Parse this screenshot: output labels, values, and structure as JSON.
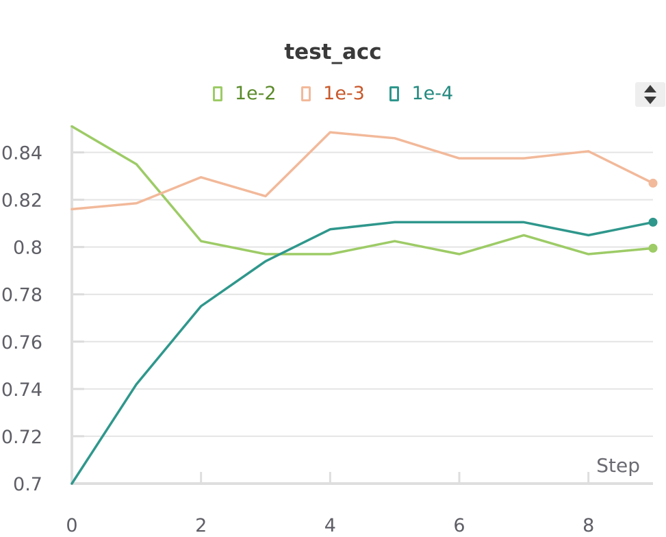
{
  "chart_data": {
    "type": "line",
    "title": "test_acc",
    "xlabel": "Step",
    "ylabel": "",
    "xlim": [
      0,
      9
    ],
    "ylim": [
      0.7,
      0.85
    ],
    "x_ticks": [
      0,
      2,
      4,
      6,
      8
    ],
    "y_ticks": [
      0.7,
      0.72,
      0.74,
      0.76,
      0.78,
      0.8,
      0.82,
      0.84
    ],
    "y_tick_labels": [
      "0.7",
      "0.72",
      "0.74",
      "0.76",
      "0.78",
      "0.8",
      "0.82",
      "0.84"
    ],
    "grid": true,
    "legend_position": "top-center",
    "x": [
      0,
      1,
      2,
      3,
      4,
      5,
      6,
      7,
      8,
      9
    ],
    "series": [
      {
        "name": "1e-2",
        "color": "#9dcb66",
        "text_color": "#5a8a2a",
        "values": [
          0.851,
          0.835,
          0.8025,
          0.797,
          0.797,
          0.8025,
          0.797,
          0.805,
          0.797,
          0.7995
        ]
      },
      {
        "name": "1e-3",
        "color": "#f2b99a",
        "text_color": "#c8582a",
        "values": [
          0.816,
          0.8185,
          0.8295,
          0.8215,
          0.8485,
          0.846,
          0.8375,
          0.8375,
          0.8405,
          0.827
        ]
      },
      {
        "name": "1e-4",
        "color": "#2f978c",
        "text_color": "#238a80",
        "values": [
          0.7,
          0.742,
          0.775,
          0.794,
          0.8075,
          0.8105,
          0.8105,
          0.8105,
          0.805,
          0.8105
        ]
      }
    ]
  }
}
